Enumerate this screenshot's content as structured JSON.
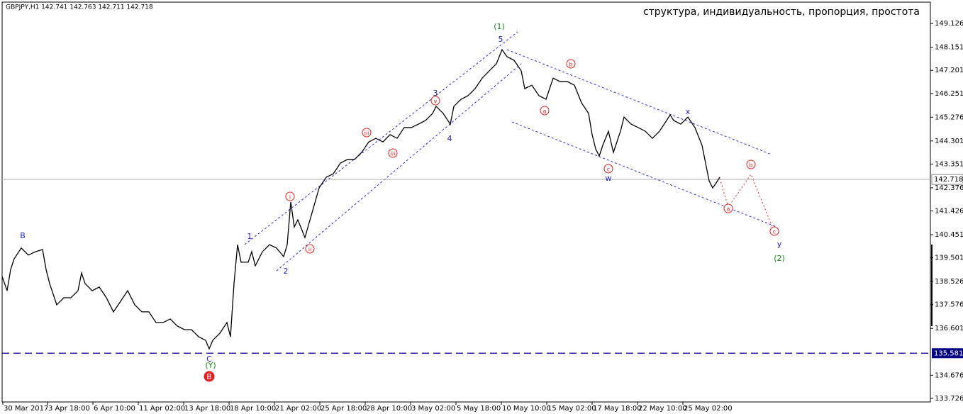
{
  "chart_data": {
    "type": "line",
    "title": "GBPJPY,H1  142.741 142.763 142.711 142.718",
    "subtitle": "структура, индивидуальность, пропорция, простота",
    "xlim": [
      0,
      1310
    ],
    "ylim": [
      133.55,
      150.09
    ],
    "xticks": [
      {
        "value": 4,
        "label": "30 Mar 2017"
      },
      {
        "value": 67,
        "label": "3 Apr 18:00"
      },
      {
        "value": 131,
        "label": "6 Apr 10:00"
      },
      {
        "value": 195,
        "label": "11 Apr 02:00"
      },
      {
        "value": 259,
        "label": "13 Apr 18:00"
      },
      {
        "value": 323,
        "label": "18 Apr 10:00"
      },
      {
        "value": 387,
        "label": "21 Apr 02:00"
      },
      {
        "value": 451,
        "label": "25 Apr 18:00"
      },
      {
        "value": 515,
        "label": "28 Apr 10:00"
      },
      {
        "value": 579,
        "label": "3 May 02:00"
      },
      {
        "value": 643,
        "label": "5 May 18:00"
      },
      {
        "value": 707,
        "label": "10 May 10:00"
      },
      {
        "value": 771,
        "label": "15 May 02:00"
      },
      {
        "value": 835,
        "label": "17 May 18:00"
      },
      {
        "value": 899,
        "label": "22 May 10:00"
      },
      {
        "value": 963,
        "label": "25 May 02:00"
      }
    ],
    "yticks": [
      149.126,
      148.151,
      147.201,
      146.251,
      145.276,
      144.301,
      143.351,
      142.376,
      141.426,
      140.451,
      139.501,
      138.526,
      137.576,
      136.601,
      134.676,
      133.726
    ],
    "current_price": 142.718,
    "level": 135.581,
    "series": [
      {
        "name": "GBPJPY",
        "color": "#000000",
        "x": [
          3,
          10,
          15,
          20,
          30,
          40,
          50,
          60,
          65,
          70,
          80,
          90,
          100,
          110,
          115,
          120,
          130,
          140,
          150,
          160,
          170,
          180,
          190,
          200,
          210,
          220,
          230,
          240,
          250,
          260,
          270,
          280,
          290,
          295,
          300,
          310,
          320,
          325,
          330,
          335,
          340,
          350,
          355,
          360,
          370,
          380,
          390,
          400,
          405,
          410,
          415,
          420,
          430,
          440,
          450,
          460,
          470,
          480,
          490,
          500,
          510,
          520,
          530,
          540,
          550,
          560,
          570,
          580,
          590,
          600,
          610,
          615,
          625,
          635,
          640,
          650,
          660,
          670,
          680,
          690,
          700,
          708,
          715,
          725,
          735,
          740,
          750,
          760,
          770,
          780,
          790,
          800,
          810,
          820,
          830,
          835,
          840,
          845,
          850,
          858,
          865,
          875,
          880,
          890,
          900,
          910,
          920,
          930,
          940,
          945,
          950,
          960,
          970,
          980,
          990,
          995,
          1000,
          1005,
          1010,
          1015
        ],
        "values": [
          138.73,
          138.15,
          139.02,
          139.46,
          139.9,
          139.61,
          139.75,
          139.84,
          139.02,
          138.44,
          137.57,
          137.86,
          137.86,
          138.15,
          138.88,
          138.44,
          138.15,
          138.3,
          137.86,
          137.28,
          137.71,
          138.15,
          137.57,
          137.28,
          137.28,
          136.84,
          136.84,
          136.99,
          136.7,
          136.55,
          136.55,
          136.26,
          136.11,
          135.76,
          136.11,
          136.4,
          136.84,
          136.26,
          138.44,
          140.04,
          139.32,
          139.32,
          139.75,
          139.17,
          139.75,
          140.04,
          139.9,
          139.55,
          140.04,
          141.79,
          140.77,
          141.06,
          140.33,
          141.35,
          142.37,
          142.81,
          142.95,
          143.39,
          143.54,
          143.54,
          143.83,
          144.26,
          144.41,
          144.26,
          144.56,
          144.41,
          144.85,
          144.85,
          144.99,
          145.14,
          145.43,
          145.72,
          145.43,
          144.99,
          145.72,
          146.01,
          146.16,
          146.45,
          146.88,
          147.18,
          147.47,
          148.05,
          147.76,
          147.61,
          147.18,
          146.45,
          146.59,
          146.16,
          146.01,
          146.88,
          146.74,
          146.74,
          146.59,
          145.87,
          145.43,
          144.56,
          143.97,
          143.68,
          144.12,
          144.7,
          143.83,
          144.7,
          145.28,
          144.99,
          144.85,
          144.7,
          144.41,
          144.7,
          145.14,
          145.37,
          145.14,
          144.99,
          145.28,
          144.85,
          144.12,
          143.39,
          142.66,
          142.37,
          142.58,
          142.81
        ]
      }
    ],
    "annotations": [
      "(1)",
      "5",
      "3",
      "4",
      "1",
      "2",
      "B",
      "C",
      "(Y)",
      "B",
      "i",
      "ii",
      "iii",
      "iii",
      "v",
      "a",
      "b",
      "c",
      "w",
      "x",
      "b",
      "a",
      "c",
      "y",
      "(2)"
    ]
  }
}
